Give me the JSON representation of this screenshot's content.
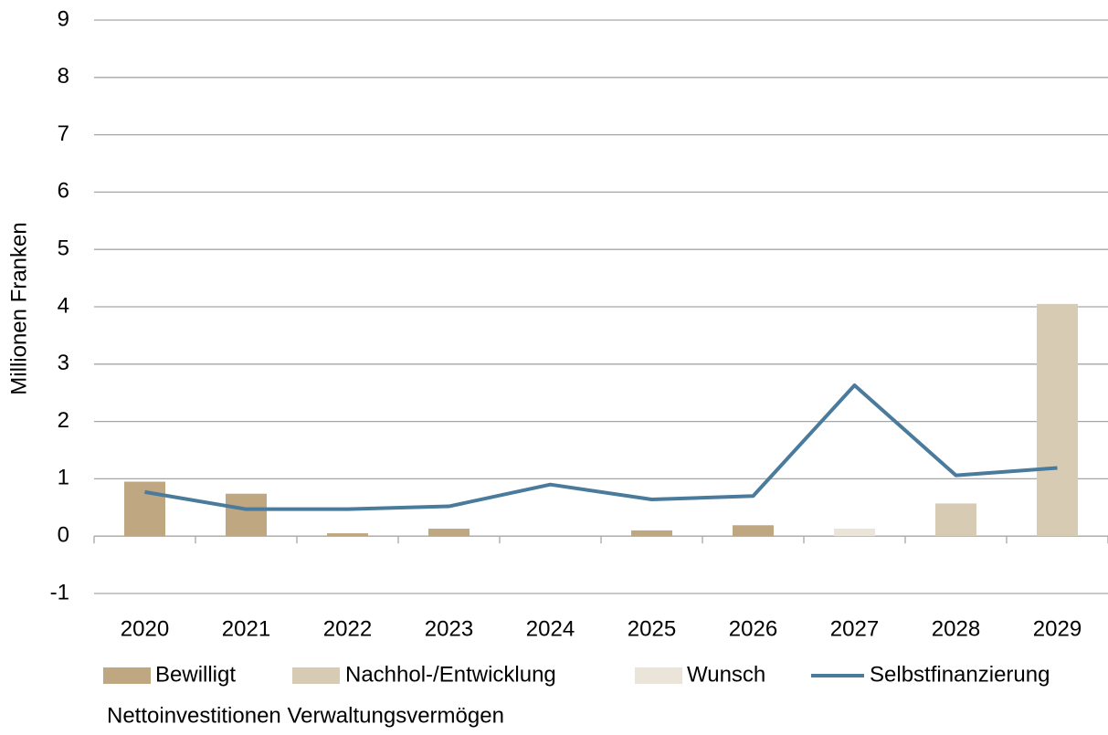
{
  "chart_data": {
    "type": "bar",
    "title": "Nettoinvestitionen Verwaltungsvermögen",
    "y_label": "Millionen Franken",
    "categories": [
      "2020",
      "2021",
      "2022",
      "2023",
      "2024",
      "2025",
      "2026",
      "2027",
      "2028",
      "2029"
    ],
    "stacked": true,
    "series": [
      {
        "name": "Bewilligt",
        "color": "#bfa881",
        "values": [
          0.95,
          0.74,
          0.05,
          0.13,
          0,
          0.1,
          0.19,
          null,
          null,
          null
        ]
      },
      {
        "name": "Nachhol-/Entwicklung",
        "color": "#d8cbb4",
        "values": [
          null,
          null,
          null,
          null,
          null,
          null,
          null,
          null,
          0.57,
          4.05
        ]
      },
      {
        "name": "Wunsch",
        "color": "#ebe4d8",
        "values": [
          null,
          null,
          null,
          null,
          null,
          null,
          null,
          0.13,
          null,
          null
        ]
      },
      {
        "name": "Selbstfinanzierung",
        "type": "line",
        "color": "#4a7a9c",
        "values": [
          0.77,
          0.47,
          0.47,
          0.52,
          0.9,
          0.64,
          0.7,
          2.63,
          1.06,
          1.19
        ]
      }
    ],
    "ylim": [
      -1,
      9
    ],
    "yticks": [
      -1,
      0,
      1,
      2,
      3,
      4,
      5,
      6,
      7,
      8,
      9
    ],
    "grid": true,
    "legend": "bottom"
  }
}
